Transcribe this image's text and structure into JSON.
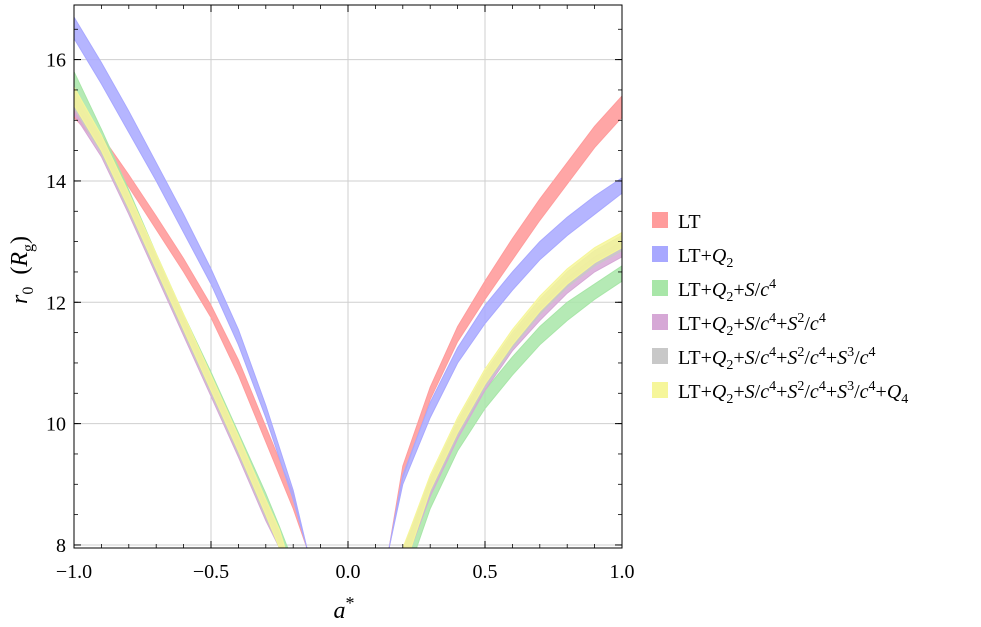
{
  "chart_data": {
    "type": "area",
    "x_ticks": [
      "−1.0",
      "−0.5",
      "0.0",
      "0.5",
      "1.0"
    ],
    "y_ticks": [
      "8",
      "10",
      "12",
      "14",
      "16"
    ],
    "xlim": [
      -1.0,
      1.0
    ],
    "ylim": [
      7.95,
      16.9
    ],
    "grid": true,
    "legend_position": "right",
    "xlabel": "a*",
    "ylabel": "r0 (Rg)",
    "series": [
      {
        "name": "LT",
        "color": "#ff9c9c",
        "branches": [
          {
            "x": [
              -1.0,
              -0.9,
              -0.8,
              -0.7,
              -0.6,
              -0.5,
              -0.4,
              -0.3,
              -0.2,
              -0.15
            ],
            "lower": [
              15.05,
              14.55,
              13.9,
              13.2,
              12.5,
              11.75,
              10.8,
              9.7,
              8.6,
              7.95
            ],
            "upper": [
              15.22,
              14.75,
              14.1,
              13.42,
              12.72,
              11.95,
              11.05,
              9.95,
              8.85,
              7.95
            ]
          },
          {
            "x": [
              0.15,
              0.2,
              0.3,
              0.4,
              0.5,
              0.6,
              0.7,
              0.8,
              0.9,
              1.0
            ],
            "lower": [
              7.95,
              9.1,
              10.4,
              11.35,
              12.05,
              12.7,
              13.35,
              13.95,
              14.55,
              15.05
            ],
            "upper": [
              7.95,
              9.3,
              10.6,
              11.6,
              12.35,
              13.05,
              13.7,
              14.3,
              14.9,
              15.4
            ]
          }
        ]
      },
      {
        "name": "LT+Q2",
        "color": "#a8a8ff",
        "branches": [
          {
            "x": [
              -1.0,
              -0.9,
              -0.8,
              -0.7,
              -0.6,
              -0.5,
              -0.4,
              -0.3,
              -0.2,
              -0.15
            ],
            "lower": [
              16.35,
              15.6,
              14.8,
              14.0,
              13.15,
              12.3,
              11.3,
              10.1,
              8.75,
              7.95
            ],
            "upper": [
              16.7,
              15.95,
              15.15,
              14.3,
              13.45,
              12.55,
              11.55,
              10.3,
              8.9,
              7.95
            ]
          },
          {
            "x": [
              0.15,
              0.2,
              0.3,
              0.4,
              0.5,
              0.6,
              0.7,
              0.8,
              0.9,
              1.0
            ],
            "lower": [
              7.95,
              9.0,
              10.1,
              11.0,
              11.65,
              12.2,
              12.7,
              13.1,
              13.45,
              13.8
            ],
            "upper": [
              7.95,
              9.15,
              10.35,
              11.25,
              11.95,
              12.5,
              13.0,
              13.4,
              13.75,
              14.05
            ]
          }
        ]
      },
      {
        "name": "LT+Q2+S/c4",
        "color": "#a8e6a8",
        "branches": [
          {
            "x": [
              -1.0,
              -0.9,
              -0.8,
              -0.7,
              -0.6,
              -0.5,
              -0.4,
              -0.3,
              -0.25,
              -0.22
            ],
            "lower": [
              15.35,
              14.55,
              13.55,
              12.5,
              11.5,
              10.55,
              9.55,
              8.5,
              7.95,
              7.95
            ],
            "upper": [
              15.8,
              14.85,
              13.85,
              12.8,
              11.8,
              10.85,
              9.85,
              8.85,
              8.3,
              7.95
            ]
          },
          {
            "x": [
              0.22,
              0.25,
              0.3,
              0.4,
              0.5,
              0.6,
              0.7,
              0.8,
              0.9,
              1.0
            ],
            "lower": [
              7.95,
              7.95,
              8.6,
              9.55,
              10.25,
              10.8,
              11.3,
              11.7,
              12.05,
              12.35
            ],
            "upper": [
              7.95,
              8.35,
              8.95,
              9.85,
              10.55,
              11.1,
              11.6,
              12.0,
              12.3,
              12.6
            ]
          }
        ]
      },
      {
        "name": "LT+Q2+S/c4+S2/c4",
        "color": "#d6a8d6",
        "branches": [
          {
            "x": [
              -1.0,
              -0.9,
              -0.8,
              -0.7,
              -0.6,
              -0.5,
              -0.4,
              -0.3,
              -0.25,
              -0.23
            ],
            "lower": [
              15.1,
              14.4,
              13.45,
              12.45,
              11.45,
              10.45,
              9.45,
              8.4,
              7.95,
              7.95
            ],
            "upper": [
              15.4,
              14.65,
              13.7,
              12.7,
              11.7,
              10.7,
              9.7,
              8.65,
              8.15,
              7.95
            ]
          },
          {
            "x": [
              0.2,
              0.23,
              0.3,
              0.4,
              0.5,
              0.6,
              0.7,
              0.8,
              0.9,
              1.0
            ],
            "lower": [
              7.95,
              7.95,
              8.8,
              9.75,
              10.55,
              11.2,
              11.7,
              12.15,
              12.5,
              12.75
            ],
            "upper": [
              7.95,
              8.2,
              9.05,
              10.0,
              10.8,
              11.45,
              11.95,
              12.4,
              12.75,
              13.0
            ]
          }
        ]
      },
      {
        "name": "LT+Q2+S/c4+S2/c4+S3/c4",
        "color": "#c8c8c8",
        "branches": [
          {
            "x": [
              -1.0,
              -0.9,
              -0.8,
              -0.7,
              -0.6,
              -0.5,
              -0.4,
              -0.3,
              -0.25,
              -0.23
            ],
            "lower": [
              15.2,
              14.45,
              13.5,
              12.5,
              11.5,
              10.5,
              9.5,
              8.45,
              7.95,
              7.95
            ],
            "upper": [
              15.5,
              14.7,
              13.75,
              12.75,
              11.75,
              10.75,
              9.75,
              8.7,
              8.2,
              7.95
            ]
          },
          {
            "x": [
              0.2,
              0.23,
              0.3,
              0.4,
              0.5,
              0.6,
              0.7,
              0.8,
              0.9,
              1.0
            ],
            "lower": [
              7.95,
              7.95,
              8.85,
              9.8,
              10.6,
              11.25,
              11.8,
              12.25,
              12.6,
              12.85
            ],
            "upper": [
              7.95,
              8.25,
              9.1,
              10.05,
              10.85,
              11.5,
              12.05,
              12.5,
              12.85,
              13.1
            ]
          }
        ]
      },
      {
        "name": "LT+Q2+S/c4+S2/c4+S3/c4+Q4",
        "color": "#f6f69a",
        "branches": [
          {
            "x": [
              -1.0,
              -0.9,
              -0.8,
              -0.7,
              -0.6,
              -0.5,
              -0.4,
              -0.3,
              -0.25,
              -0.23
            ],
            "lower": [
              15.25,
              14.5,
              13.55,
              12.55,
              11.55,
              10.55,
              9.55,
              8.5,
              7.95,
              7.95
            ],
            "upper": [
              15.55,
              14.75,
              13.8,
              12.8,
              11.8,
              10.8,
              9.8,
              8.75,
              8.25,
              7.95
            ]
          },
          {
            "x": [
              0.2,
              0.23,
              0.3,
              0.4,
              0.5,
              0.6,
              0.7,
              0.8,
              0.9,
              1.0
            ],
            "lower": [
              7.95,
              7.95,
              8.9,
              9.85,
              10.65,
              11.3,
              11.85,
              12.3,
              12.65,
              12.9
            ],
            "upper": [
              7.95,
              8.3,
              9.15,
              10.1,
              10.9,
              11.55,
              12.1,
              12.55,
              12.9,
              13.15
            ]
          }
        ]
      }
    ]
  }
}
